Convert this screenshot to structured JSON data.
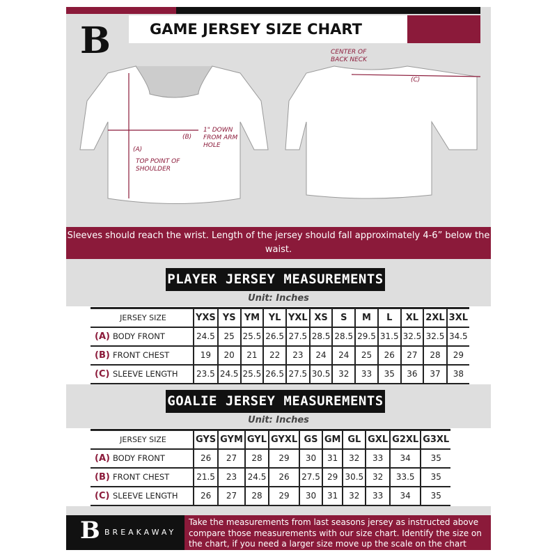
{
  "header": {
    "title": "GAME JERSEY SIZE CHART",
    "logo": "B"
  },
  "diagram": {
    "label_a": "(A)",
    "label_a_desc": "TOP POINT OF SHOULDER",
    "label_b": "(B)",
    "label_b_desc": "1\" DOWN FROM ARM HOLE",
    "label_c": "(C)",
    "label_c_desc": "CENTER OF BACK NECK"
  },
  "notice": "Sleeves should reach the wrist. Length of the jersey should fall approximately 4-6” below the waist.",
  "player": {
    "title": "PLAYER JERSEY MEASUREMENTS",
    "unit": "Unit: Inches",
    "header_label": "JERSEY SIZE",
    "sizes": [
      "YXS",
      "YS",
      "YM",
      "YL",
      "YXL",
      "XS",
      "S",
      "M",
      "L",
      "XL",
      "2XL",
      "3XL"
    ],
    "rows": [
      {
        "code": "(A)",
        "label": "BODY FRONT",
        "values": [
          "24.5",
          "25",
          "25.5",
          "26.5",
          "27.5",
          "28.5",
          "28.5",
          "29.5",
          "31.5",
          "32.5",
          "32.5",
          "34.5"
        ]
      },
      {
        "code": "(B)",
        "label": "FRONT CHEST",
        "values": [
          "19",
          "20",
          "21",
          "22",
          "23",
          "24",
          "24",
          "25",
          "26",
          "27",
          "28",
          "29"
        ]
      },
      {
        "code": "(C)",
        "label": "SLEEVE LENGTH",
        "values": [
          "23.5",
          "24.5",
          "25.5",
          "26.5",
          "27.5",
          "30.5",
          "32",
          "33",
          "35",
          "36",
          "37",
          "38"
        ]
      }
    ]
  },
  "goalie": {
    "title": "GOALIE JERSEY MEASUREMENTS",
    "unit": "Unit: Inches",
    "header_label": "JERSEY SIZE",
    "sizes": [
      "GYS",
      "GYM",
      "GYL",
      "GYXL",
      "GS",
      "GM",
      "GL",
      "GXL",
      "G2XL",
      "G3XL"
    ],
    "rows": [
      {
        "code": "(A)",
        "label": "BODY FRONT",
        "values": [
          "26",
          "27",
          "28",
          "29",
          "30",
          "31",
          "32",
          "33",
          "34",
          "35"
        ]
      },
      {
        "code": "(B)",
        "label": "FRONT CHEST",
        "values": [
          "21.5",
          "23",
          "24.5",
          "26",
          "27.5",
          "29",
          "30.5",
          "32",
          "33.5",
          "35"
        ]
      },
      {
        "code": "(C)",
        "label": "SLEEVE LENGTH",
        "values": [
          "26",
          "27",
          "28",
          "29",
          "30",
          "31",
          "32",
          "33",
          "34",
          "35"
        ]
      }
    ]
  },
  "footer": {
    "brand": "BREAKAWAY",
    "logo": "B",
    "text": "Take the measurements from last seasons jersey as instructed above compare those measurements  with our size chart. Identify the size on the chart, if you need a larger size move up the scale on the chart"
  },
  "colors": {
    "accent": "#8b1a3a",
    "dark": "#111111",
    "background": "#dedede"
  }
}
